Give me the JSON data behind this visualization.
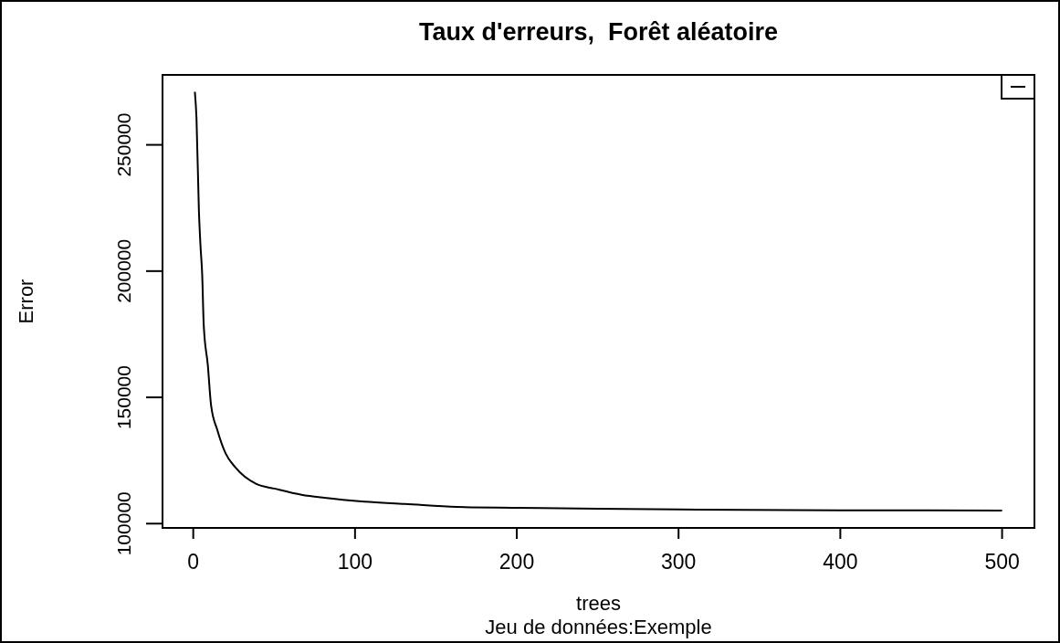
{
  "chart_data": {
    "type": "line",
    "title": "Taux d'erreurs,  Forêt aléatoire",
    "subtitle": "Jeu de données:Exemple",
    "xlabel": "trees",
    "ylabel": "Error",
    "x": [
      1,
      2,
      3.5,
      4.5,
      5.5,
      6.5,
      9,
      11,
      15,
      20,
      26,
      39,
      50,
      67,
      81,
      106,
      131,
      163,
      200,
      250,
      300,
      400,
      500
    ],
    "series": [
      {
        "color": "#000000",
        "values": [
          271000,
          260500,
          223700,
          209800,
          199000,
          178400,
          162800,
          147000,
          136800,
          127800,
          122300,
          115700,
          113900,
          111400,
          110200,
          108700,
          107800,
          106600,
          106300,
          105900,
          105600,
          105300,
          105200
        ]
      }
    ],
    "xlim": [
      -19,
      520
    ],
    "xticks": [
      0,
      100,
      200,
      300,
      400,
      500
    ],
    "ylim": [
      98300,
      277700
    ],
    "yticks": [
      100000,
      150000,
      200000,
      250000
    ],
    "line_style": "solid",
    "marker": "none",
    "grid": false
  }
}
